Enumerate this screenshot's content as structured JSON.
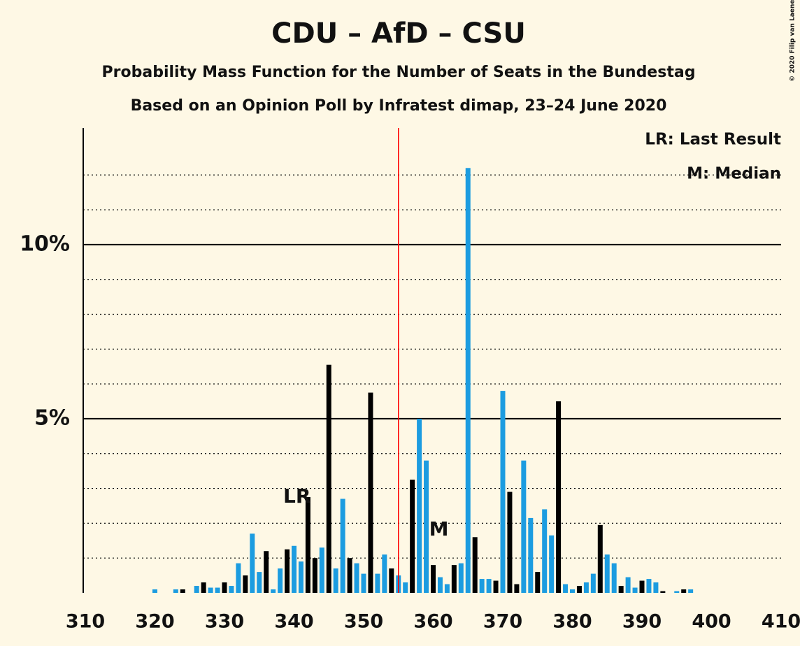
{
  "chart_data": {
    "type": "bar",
    "title": "CDU – AfD – CSU",
    "subtitle": "Probability Mass Function for the Number of Seats in the Bundestag",
    "subtitle2": "Based on an Opinion Poll by Infratest dimap, 23–24 June 2020",
    "legend_lines": [
      "LR: Last Result",
      "M: Median"
    ],
    "copyright": "© 2020 Filip van Laenen",
    "x": [
      310,
      311,
      312,
      313,
      314,
      315,
      316,
      317,
      318,
      319,
      320,
      321,
      322,
      323,
      324,
      325,
      326,
      327,
      328,
      329,
      330,
      331,
      332,
      333,
      334,
      335,
      336,
      337,
      338,
      339,
      340,
      341,
      342,
      343,
      344,
      345,
      346,
      347,
      348,
      349,
      350,
      351,
      352,
      353,
      354,
      355,
      356,
      357,
      358,
      359,
      360,
      361,
      362,
      363,
      364,
      365,
      366,
      367,
      368,
      369,
      370,
      371,
      372,
      373,
      374,
      375,
      376,
      377,
      378,
      379,
      380,
      381,
      382,
      383,
      384,
      385,
      386,
      387,
      388,
      389,
      390,
      391,
      392,
      393,
      394,
      395,
      396,
      397,
      398,
      399,
      400,
      401,
      402,
      403,
      404,
      405,
      406,
      407,
      408,
      409,
      410
    ],
    "values": [
      0,
      0,
      0,
      0,
      0,
      0,
      0,
      0,
      0,
      0,
      0.1,
      0,
      0,
      0.1,
      0.1,
      0,
      0.2,
      0.3,
      0.15,
      0.15,
      0.3,
      0.2,
      0.85,
      0.5,
      1.7,
      0.6,
      1.2,
      0.1,
      0.7,
      1.25,
      1.35,
      0.9,
      2.75,
      1.0,
      1.3,
      6.55,
      0.7,
      2.7,
      1.0,
      0.85,
      0.55,
      5.75,
      0.55,
      1.1,
      0.7,
      0.5,
      0.3,
      3.25,
      5.0,
      3.8,
      0.8,
      0.45,
      0.25,
      0.8,
      0.85,
      12.2,
      1.6,
      0.4,
      0.4,
      0.35,
      5.8,
      2.9,
      0.25,
      3.8,
      2.15,
      0.6,
      2.4,
      1.65,
      5.5,
      0.25,
      0.1,
      0.2,
      0.3,
      0.55,
      1.95,
      1.1,
      0.85,
      0.2,
      0.45,
      0.15,
      0.35,
      0.4,
      0.3,
      0.05,
      0,
      0.05,
      0.1,
      0.1,
      0,
      0,
      0,
      0,
      0,
      0,
      0,
      0,
      0,
      0,
      0,
      0,
      0
    ],
    "colors": [
      "#1c9ce0",
      "#1c9ce0",
      "#000000",
      "#1c9ce0",
      "#1c9ce0",
      "#000000",
      "#1c9ce0",
      "#1c9ce0",
      "#000000",
      "#1c9ce0",
      "#1c9ce0",
      "#000000",
      "#1c9ce0",
      "#1c9ce0",
      "#000000",
      "#1c9ce0",
      "#1c9ce0",
      "#000000",
      "#1c9ce0",
      "#1c9ce0",
      "#000000",
      "#1c9ce0",
      "#1c9ce0",
      "#000000",
      "#1c9ce0",
      "#1c9ce0",
      "#000000",
      "#1c9ce0",
      "#1c9ce0",
      "#000000",
      "#1c9ce0",
      "#1c9ce0",
      "#000000",
      "#000000",
      "#1c9ce0",
      "#000000",
      "#1c9ce0",
      "#1c9ce0",
      "#000000",
      "#1c9ce0",
      "#1c9ce0",
      "#000000",
      "#1c9ce0",
      "#1c9ce0",
      "#000000",
      "#1c9ce0",
      "#1c9ce0",
      "#000000",
      "#1c9ce0",
      "#1c9ce0",
      "#000000",
      "#1c9ce0",
      "#1c9ce0",
      "#000000",
      "#1c9ce0",
      "#1c9ce0",
      "#000000",
      "#1c9ce0",
      "#1c9ce0",
      "#000000",
      "#1c9ce0",
      "#000000",
      "#000000",
      "#1c9ce0",
      "#1c9ce0",
      "#000000",
      "#1c9ce0",
      "#1c9ce0",
      "#000000",
      "#1c9ce0",
      "#1c9ce0",
      "#000000",
      "#1c9ce0",
      "#1c9ce0",
      "#000000",
      "#1c9ce0",
      "#1c9ce0",
      "#000000",
      "#1c9ce0",
      "#1c9ce0",
      "#000000",
      "#1c9ce0",
      "#1c9ce0",
      "#000000",
      "#1c9ce0",
      "#1c9ce0",
      "#000000",
      "#1c9ce0",
      "#1c9ce0",
      "#000000",
      "#1c9ce0",
      "#1c9ce0",
      "#000000",
      "#1c9ce0",
      "#1c9ce0",
      "#000000",
      "#1c9ce0",
      "#1c9ce0",
      "#000000",
      "#1c9ce0",
      "#1c9ce0"
    ],
    "xlim": [
      310,
      410
    ],
    "xticks": [
      310,
      320,
      330,
      340,
      350,
      360,
      370,
      380,
      390,
      400,
      410
    ],
    "ylim": [
      0,
      13.35
    ],
    "yticks": [
      {
        "value": 5,
        "label": "5%"
      },
      {
        "value": 10,
        "label": "10%"
      }
    ],
    "minor_gridlines": [
      1,
      2,
      3,
      4,
      6,
      7,
      8,
      9,
      11,
      12
    ],
    "majority": 355,
    "majority_color": "#ff0000",
    "annotations": [
      {
        "text": "LR",
        "x": 342
      },
      {
        "text": "M",
        "x": 360
      }
    ]
  }
}
